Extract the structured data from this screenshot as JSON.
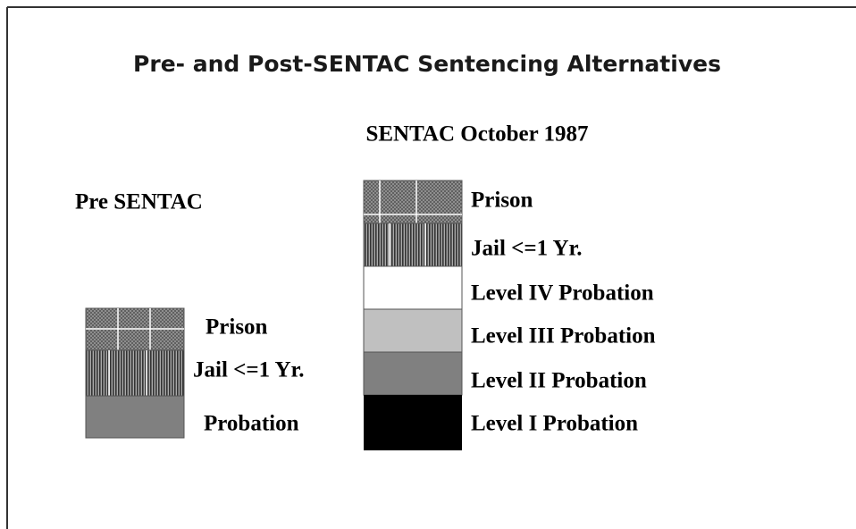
{
  "title": "Pre- and Post-SENTAC Sentencing Alternatives",
  "subtitle": "SENTAC October 1987",
  "pre_sentac": {
    "label": "Pre SENTAC",
    "items": [
      "Prison",
      "Jail <=1 Yr.",
      "Probation"
    ]
  },
  "post_sentac": {
    "items": [
      "Prison",
      "Jail <=1 Yr.",
      "Level IV Probation",
      "Level III Probation",
      "Level II Probation",
      "Level I Probation"
    ]
  }
}
